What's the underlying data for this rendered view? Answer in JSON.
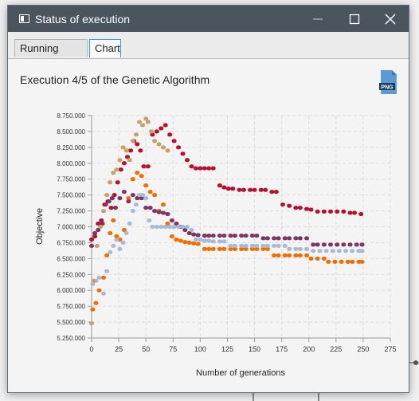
{
  "window": {
    "title": "Status of execution",
    "controls": [
      "minimize",
      "maximize",
      "close"
    ]
  },
  "tabs": [
    {
      "label": "Running Status",
      "selected": false
    },
    {
      "label": "Chart",
      "selected": true
    }
  ],
  "chart_title": "Execution 4/5 of the Genetic Algorithm",
  "export_icon": {
    "name": "png-file-icon",
    "label": "PNG"
  },
  "colors": {
    "titlebar": "#4a5560",
    "accent": "#3a9ad9",
    "series": [
      "#b8102a",
      "#f26c00",
      "#7d3566",
      "#a7bbd6",
      "#c8a06a"
    ]
  },
  "chart_data": {
    "type": "scatter",
    "title": "Execution 4/5 of the Genetic Algorithm",
    "xlabel": "Number of generations",
    "ylabel": "Objective",
    "xlim": [
      0,
      275
    ],
    "ylim": [
      5250000,
      8750000
    ],
    "grid": true,
    "x_ticks": [
      "0",
      "25",
      "50",
      "75",
      "100",
      "125",
      "150",
      "175",
      "200",
      "225",
      "250",
      "275"
    ],
    "y_ticks": [
      "5.250.000",
      "5.500.000",
      "5.750.000",
      "6.000.000",
      "6.250.000",
      "6.500.000",
      "6.750.000",
      "7.000.000",
      "7.250.000",
      "7.500.000",
      "7.750.000",
      "8.000.000",
      "8.250.000",
      "8.500.000",
      "8.750.000"
    ],
    "series": [
      {
        "values": [
          [
            0,
            6800000
          ],
          [
            3,
            6850000
          ],
          [
            6,
            7050000
          ],
          [
            9,
            7100000
          ],
          [
            12,
            7350000
          ],
          [
            15,
            7400000
          ],
          [
            18,
            7300000
          ],
          [
            21,
            7500000
          ],
          [
            24,
            7700000
          ],
          [
            27,
            7900000
          ],
          [
            30,
            8000000
          ],
          [
            33,
            8100000
          ],
          [
            36,
            8200000
          ],
          [
            39,
            8350000
          ],
          [
            42,
            8300000
          ],
          [
            45,
            8200000
          ],
          [
            48,
            7950000
          ],
          [
            52,
            7950000
          ],
          [
            56,
            8450000
          ],
          [
            60,
            8500000
          ],
          [
            64,
            8550000
          ],
          [
            68,
            8600000
          ],
          [
            72,
            8450000
          ],
          [
            76,
            8350000
          ],
          [
            80,
            8250000
          ],
          [
            84,
            8150000
          ],
          [
            88,
            8050000
          ],
          [
            92,
            7950000
          ],
          [
            96,
            7920000
          ],
          [
            100,
            7920000
          ],
          [
            104,
            7920000
          ],
          [
            108,
            7920000
          ],
          [
            112,
            7920000
          ],
          [
            118,
            7650000
          ],
          [
            122,
            7620000
          ],
          [
            126,
            7600000
          ],
          [
            130,
            7600000
          ],
          [
            136,
            7580000
          ],
          [
            140,
            7580000
          ],
          [
            146,
            7580000
          ],
          [
            150,
            7580000
          ],
          [
            156,
            7580000
          ],
          [
            160,
            7580000
          ],
          [
            166,
            7550000
          ],
          [
            170,
            7550000
          ],
          [
            176,
            7350000
          ],
          [
            182,
            7330000
          ],
          [
            188,
            7300000
          ],
          [
            192,
            7300000
          ],
          [
            198,
            7280000
          ],
          [
            202,
            7270000
          ],
          [
            208,
            7240000
          ],
          [
            214,
            7240000
          ],
          [
            220,
            7240000
          ],
          [
            226,
            7240000
          ],
          [
            232,
            7240000
          ],
          [
            238,
            7220000
          ],
          [
            242,
            7220000
          ],
          [
            248,
            7200000
          ]
        ]
      },
      {
        "values": [
          [
            1,
            5700000
          ],
          [
            4,
            5800000
          ],
          [
            7,
            6000000
          ],
          [
            11,
            6200000
          ],
          [
            14,
            6550000
          ],
          [
            17,
            6900000
          ],
          [
            20,
            7100000
          ],
          [
            23,
            6850000
          ],
          [
            26,
            6800000
          ],
          [
            30,
            6950000
          ],
          [
            34,
            7450000
          ],
          [
            38,
            7750000
          ],
          [
            42,
            7850000
          ],
          [
            46,
            7800000
          ],
          [
            50,
            7650000
          ],
          [
            54,
            7550000
          ],
          [
            58,
            7500000
          ],
          [
            62,
            7250000
          ],
          [
            66,
            7350000
          ],
          [
            70,
            7050000
          ],
          [
            74,
            6850000
          ],
          [
            78,
            6800000
          ],
          [
            82,
            6780000
          ],
          [
            86,
            6760000
          ],
          [
            90,
            6750000
          ],
          [
            94,
            6740000
          ],
          [
            98,
            6730000
          ],
          [
            104,
            6650000
          ],
          [
            108,
            6650000
          ],
          [
            112,
            6650000
          ],
          [
            118,
            6650000
          ],
          [
            122,
            6650000
          ],
          [
            128,
            6650000
          ],
          [
            132,
            6650000
          ],
          [
            138,
            6650000
          ],
          [
            142,
            6650000
          ],
          [
            148,
            6650000
          ],
          [
            152,
            6650000
          ],
          [
            158,
            6650000
          ],
          [
            162,
            6650000
          ],
          [
            168,
            6550000
          ],
          [
            172,
            6550000
          ],
          [
            178,
            6550000
          ],
          [
            182,
            6550000
          ],
          [
            188,
            6550000
          ],
          [
            192,
            6550000
          ],
          [
            198,
            6550000
          ],
          [
            202,
            6500000
          ],
          [
            208,
            6500000
          ],
          [
            214,
            6500000
          ],
          [
            218,
            6450000
          ],
          [
            224,
            6450000
          ],
          [
            230,
            6450000
          ],
          [
            236,
            6450000
          ],
          [
            240,
            6450000
          ],
          [
            246,
            6450000
          ],
          [
            249,
            6450000
          ]
        ]
      },
      {
        "values": [
          [
            0,
            6700000
          ],
          [
            3,
            6900000
          ],
          [
            6,
            6950000
          ],
          [
            10,
            7050000
          ],
          [
            13,
            7350000
          ],
          [
            16,
            7400000
          ],
          [
            19,
            7450000
          ],
          [
            22,
            7300000
          ],
          [
            26,
            7450000
          ],
          [
            30,
            7550000
          ],
          [
            34,
            7400000
          ],
          [
            38,
            7500000
          ],
          [
            42,
            7450000
          ],
          [
            46,
            7450000
          ],
          [
            50,
            7300000
          ],
          [
            54,
            7300000
          ],
          [
            58,
            7250000
          ],
          [
            62,
            7230000
          ],
          [
            66,
            7220000
          ],
          [
            70,
            7200000
          ],
          [
            74,
            7100000
          ],
          [
            78,
            7050000
          ],
          [
            82,
            7000000
          ],
          [
            86,
            6950000
          ],
          [
            90,
            6900000
          ],
          [
            94,
            6880000
          ],
          [
            98,
            6870000
          ],
          [
            104,
            6860000
          ],
          [
            108,
            6860000
          ],
          [
            112,
            6860000
          ],
          [
            118,
            6860000
          ],
          [
            122,
            6860000
          ],
          [
            128,
            6860000
          ],
          [
            132,
            6860000
          ],
          [
            138,
            6860000
          ],
          [
            142,
            6860000
          ],
          [
            148,
            6860000
          ],
          [
            152,
            6860000
          ],
          [
            158,
            6820000
          ],
          [
            162,
            6820000
          ],
          [
            168,
            6820000
          ],
          [
            172,
            6820000
          ],
          [
            178,
            6820000
          ],
          [
            182,
            6820000
          ],
          [
            188,
            6820000
          ],
          [
            192,
            6820000
          ],
          [
            198,
            6820000
          ],
          [
            204,
            6720000
          ],
          [
            208,
            6720000
          ],
          [
            214,
            6720000
          ],
          [
            220,
            6720000
          ],
          [
            226,
            6720000
          ],
          [
            232,
            6720000
          ],
          [
            238,
            6720000
          ],
          [
            244,
            6720000
          ],
          [
            249,
            6720000
          ]
        ]
      },
      {
        "values": [
          [
            1,
            6100000
          ],
          [
            4,
            6150000
          ],
          [
            7,
            6200000
          ],
          [
            11,
            5950000
          ],
          [
            14,
            6300000
          ],
          [
            17,
            6600000
          ],
          [
            20,
            6700000
          ],
          [
            23,
            6800000
          ],
          [
            26,
            6650000
          ],
          [
            29,
            6750000
          ],
          [
            32,
            6900000
          ],
          [
            35,
            7050000
          ],
          [
            38,
            7250000
          ],
          [
            41,
            7350000
          ],
          [
            44,
            7500000
          ],
          [
            47,
            7500000
          ],
          [
            50,
            7450000
          ],
          [
            53,
            7100000
          ],
          [
            56,
            7000000
          ],
          [
            60,
            7000000
          ],
          [
            64,
            7000000
          ],
          [
            68,
            7000000
          ],
          [
            72,
            7000000
          ],
          [
            76,
            7000000
          ],
          [
            80,
            7000000
          ],
          [
            84,
            7000000
          ],
          [
            88,
            7000000
          ],
          [
            92,
            6950000
          ],
          [
            96,
            6800000
          ],
          [
            100,
            6800000
          ],
          [
            104,
            6780000
          ],
          [
            108,
            6780000
          ],
          [
            112,
            6770000
          ],
          [
            118,
            6770000
          ],
          [
            122,
            6770000
          ],
          [
            128,
            6700000
          ],
          [
            132,
            6700000
          ],
          [
            138,
            6700000
          ],
          [
            142,
            6700000
          ],
          [
            148,
            6700000
          ],
          [
            152,
            6700000
          ],
          [
            158,
            6700000
          ],
          [
            162,
            6700000
          ],
          [
            168,
            6700000
          ],
          [
            172,
            6700000
          ],
          [
            178,
            6700000
          ],
          [
            182,
            6650000
          ],
          [
            188,
            6650000
          ],
          [
            192,
            6650000
          ],
          [
            198,
            6650000
          ],
          [
            204,
            6620000
          ],
          [
            210,
            6620000
          ],
          [
            216,
            6620000
          ],
          [
            222,
            6620000
          ],
          [
            228,
            6620000
          ],
          [
            234,
            6620000
          ],
          [
            240,
            6620000
          ],
          [
            246,
            6620000
          ],
          [
            249,
            6620000
          ]
        ]
      },
      {
        "values": [
          [
            0,
            5480000
          ],
          [
            2,
            6150000
          ],
          [
            5,
            6700000
          ],
          [
            8,
            7000000
          ],
          [
            11,
            7250000
          ],
          [
            14,
            7500000
          ],
          [
            17,
            7700000
          ],
          [
            20,
            7850000
          ],
          [
            23,
            7900000
          ],
          [
            26,
            8050000
          ],
          [
            29,
            8250000
          ],
          [
            32,
            8200000
          ],
          [
            35,
            8050000
          ],
          [
            38,
            8350000
          ],
          [
            41,
            8450000
          ],
          [
            44,
            8650000
          ],
          [
            47,
            8600000
          ],
          [
            50,
            8700000
          ],
          [
            52,
            8650000
          ],
          [
            55,
            8500000
          ],
          [
            58,
            8350000
          ],
          [
            62,
            8300000
          ],
          [
            66,
            8250000
          ],
          [
            70,
            8200000
          ]
        ]
      }
    ]
  }
}
